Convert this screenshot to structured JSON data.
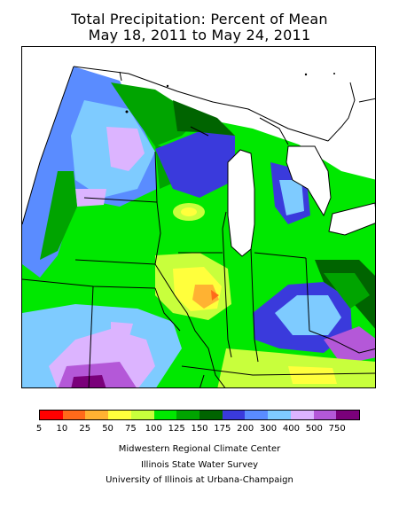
{
  "title_line1": "Total Precipitation: Percent of Mean",
  "title_line2": "May 18, 2011 to May 24, 2011",
  "legend": {
    "colors": [
      "#ff0000",
      "#ff6a1a",
      "#ffb232",
      "#ffff3c",
      "#c8ff3c",
      "#00e800",
      "#00a400",
      "#006400",
      "#3a3adc",
      "#5a8cff",
      "#7ecbff",
      "#dcb4ff",
      "#b458d8",
      "#7a007a"
    ],
    "labels": [
      "5",
      "10",
      "25",
      "50",
      "75",
      "100",
      "125",
      "150",
      "175",
      "200",
      "300",
      "400",
      "500",
      "750"
    ]
  },
  "credits": {
    "line1": "Midwestern Regional Climate Center",
    "line2": "Illinois State Water Survey",
    "line3": "University of Illinois at Urbana-Champaign"
  }
}
